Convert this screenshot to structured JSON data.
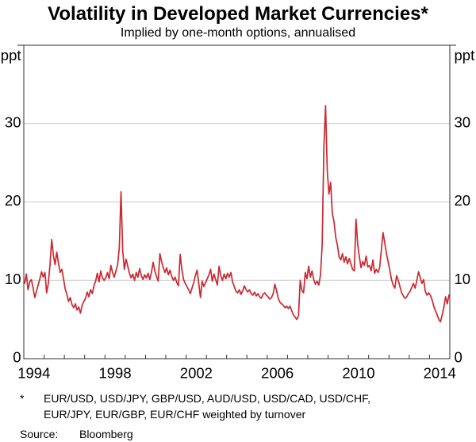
{
  "title": "Volatility in Developed Market Currencies*",
  "subtitle": "Implied by one-month options, annualised",
  "axis_unit_left": "ppt",
  "axis_unit_right": "ppt",
  "footnote": {
    "marker": "*",
    "lines": [
      "EUR/USD, USD/JPY, GBP/USD, AUD/USD, USD/CAD, USD/CHF,",
      "EUR/JPY, EUR/GBP, EUR/CHF weighted by turnover"
    ]
  },
  "source_label": "Source:",
  "source_value": "Bloomberg",
  "colors": {
    "line": "#cb2830",
    "grid": "#cccccc",
    "frame": "#2f2f2f",
    "text": "#000000"
  },
  "chart_data": {
    "type": "line",
    "title": "Volatility in Developed Market Currencies",
    "subtitle": "Implied by one-month options, annualised",
    "ylabel": "ppt",
    "ylim": [
      0,
      40
    ],
    "yticks": [
      0,
      10,
      20,
      30
    ],
    "xlim": [
      1994,
      2015
    ],
    "xtick_labels": [
      1994,
      1998,
      2002,
      2006,
      2010,
      2014
    ],
    "grid": "horizontal",
    "legend_position": "none",
    "series": [
      {
        "name": "implied_volatility",
        "color": "#cb2830",
        "start_year": 1994,
        "frequency": "monthly",
        "values": [
          9.6,
          10.8,
          8.8,
          9.8,
          10.1,
          9.0,
          7.8,
          8.6,
          9.4,
          10.2,
          11.1,
          10.4,
          11.0,
          8.4,
          9.6,
          12.0,
          15.2,
          13.2,
          12.0,
          13.6,
          12.2,
          11.0,
          11.4,
          10.2,
          8.9,
          8.2,
          7.3,
          7.8,
          6.9,
          6.5,
          7.0,
          6.2,
          6.6,
          5.8,
          6.8,
          7.3,
          7.7,
          8.5,
          7.9,
          8.8,
          8.3,
          9.3,
          9.9,
          10.9,
          9.8,
          11.2,
          10.3,
          10.0,
          10.3,
          11.0,
          10.2,
          11.9,
          11.0,
          10.4,
          11.2,
          12.0,
          14.2,
          21.3,
          13.8,
          11.4,
          12.7,
          11.8,
          10.9,
          10.3,
          10.8,
          10.0,
          11.0,
          10.4,
          11.5,
          10.6,
          10.1,
          10.7,
          10.3,
          10.9,
          10.1,
          11.0,
          12.3,
          11.2,
          10.5,
          9.9,
          13.4,
          12.4,
          11.6,
          11.0,
          11.6,
          10.7,
          11.3,
          10.5,
          10.0,
          10.4,
          9.7,
          9.3,
          13.3,
          11.4,
          10.1,
          9.6,
          9.2,
          8.8,
          8.3,
          9.0,
          9.7,
          10.6,
          11.3,
          9.6,
          7.8,
          9.9,
          9.2,
          9.7,
          10.2,
          10.7,
          11.4,
          9.9,
          10.8,
          10.1,
          9.4,
          11.8,
          10.6,
          10.0,
          10.8,
          10.2,
          10.9,
          10.4,
          11.0,
          9.8,
          9.2,
          8.6,
          8.4,
          8.8,
          8.2,
          8.7,
          9.3,
          8.8,
          8.5,
          8.8,
          8.3,
          8.1,
          8.5,
          8.0,
          8.3,
          7.9,
          7.7,
          8.2,
          8.4,
          8.1,
          7.9,
          7.6,
          7.8,
          8.3,
          9.5,
          8.7,
          7.7,
          7.2,
          7.0,
          6.8,
          6.5,
          6.7,
          6.4,
          6.7,
          6.1,
          5.6,
          5.3,
          5.0,
          5.5,
          10.0,
          8.7,
          8.4,
          11.0,
          10.2,
          11.8,
          10.4,
          11.2,
          10.1,
          9.5,
          9.9,
          9.4,
          10.7,
          14.5,
          27.0,
          32.3,
          24.0,
          21.0,
          22.5,
          18.5,
          17.5,
          15.5,
          14.5,
          13.0,
          12.6,
          13.4,
          12.3,
          13.0,
          12.1,
          12.8,
          12.1,
          11.4,
          11.2,
          17.8,
          14.6,
          13.0,
          11.6,
          12.4,
          11.9,
          13.1,
          11.7,
          11.9,
          11.2,
          12.6,
          10.9,
          11.4,
          11.0,
          11.6,
          13.9,
          16.1,
          14.8,
          13.4,
          12.4,
          11.3,
          10.1,
          9.4,
          9.0,
          10.6,
          10.0,
          9.2,
          8.4,
          8.0,
          7.7,
          7.9,
          8.3,
          8.6,
          9.1,
          9.6,
          9.0,
          10.0,
          11.1,
          10.3,
          9.6,
          10.1,
          8.6,
          8.1,
          8.4,
          8.1,
          7.5,
          6.7,
          6.1,
          5.6,
          5.0,
          4.7,
          5.6,
          6.6,
          7.9,
          7.0,
          8.1
        ]
      }
    ]
  }
}
